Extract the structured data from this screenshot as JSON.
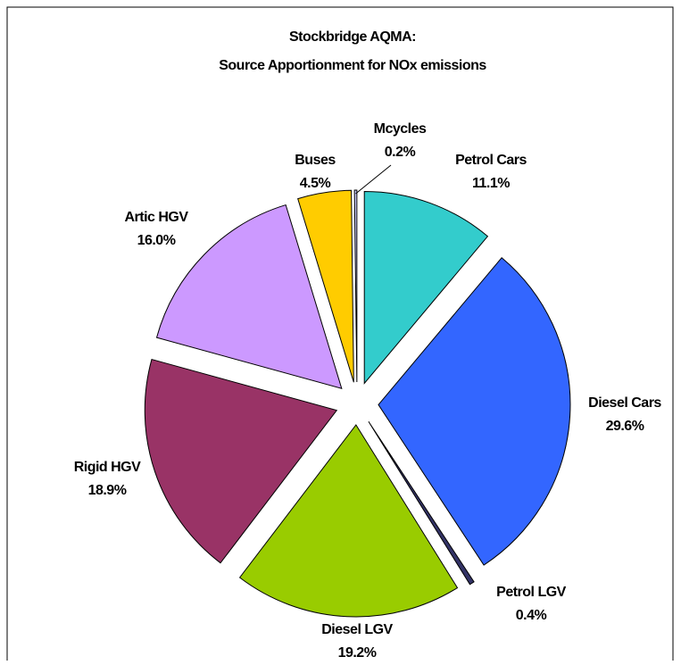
{
  "chart_data": {
    "type": "pie",
    "title": "Stockbridge AQMA:",
    "subtitle": "Source Apportionment for NOx emissions",
    "categories": [
      "Petrol Cars",
      "Diesel Cars",
      "Petrol LGV",
      "Diesel LGV",
      "Rigid HGV",
      "Artic HGV",
      "Buses",
      "Mcycles"
    ],
    "values": [
      11.1,
      29.6,
      0.4,
      19.2,
      18.9,
      16.0,
      4.5,
      0.2
    ],
    "value_labels": [
      "11.1%",
      "29.6%",
      "0.4%",
      "19.2%",
      "18.9%",
      "16.0%",
      "4.5%",
      "0.2%"
    ],
    "colors": [
      "#33cccc",
      "#3366ff",
      "#333366",
      "#99cc00",
      "#993366",
      "#cc99ff",
      "#ffcc00",
      "#ccccff"
    ]
  }
}
